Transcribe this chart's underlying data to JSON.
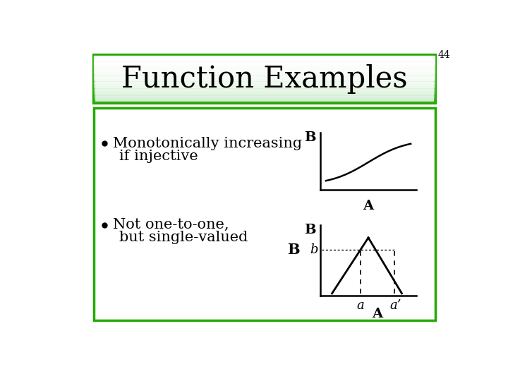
{
  "slide_number": "44",
  "title": "Function Examples",
  "background_color": "#ffffff",
  "title_box_fill": "#e8ffe8",
  "title_box_border": "#22aa00",
  "content_box_border": "#22aa00",
  "bullet1_line1": "Monotonically increasing",
  "bullet1_line2": "if injective",
  "bullet2_line1": "Not one-to-one,",
  "bullet2_line2": "but single-valued",
  "label_B1": "B",
  "label_A1": "A",
  "label_B2": "B",
  "label_b": "b",
  "label_a": "a",
  "label_a_prime": "a’",
  "label_A2": "A",
  "title_fontsize": 30,
  "body_fontsize": 15,
  "graph_label_fontsize": 13
}
